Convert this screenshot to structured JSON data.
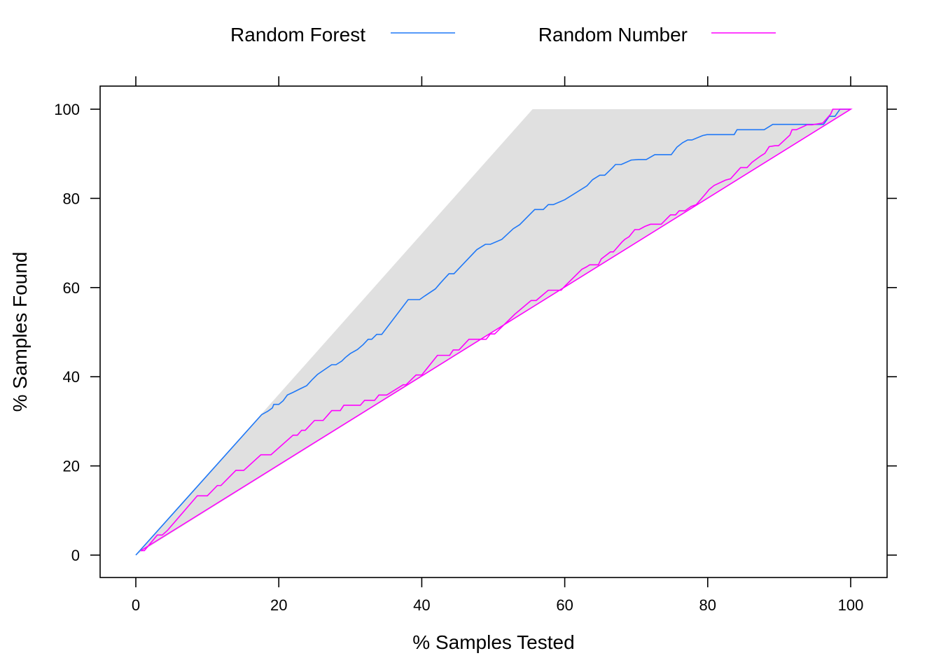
{
  "chart_data": {
    "type": "line",
    "xlabel": "% Samples Tested",
    "ylabel": "% Samples Found",
    "xlim": [
      -5,
      105
    ],
    "ylim": [
      -5,
      105
    ],
    "x_ticks": [
      "0",
      "20",
      "40",
      "60",
      "80",
      "100"
    ],
    "y_ticks": [
      "0",
      "20",
      "40",
      "60",
      "80",
      "100"
    ],
    "x_tick_values": [
      0,
      20,
      40,
      60,
      80,
      100
    ],
    "y_tick_values": [
      0,
      20,
      40,
      60,
      80,
      100
    ],
    "legend_position": "top",
    "grid": false,
    "band": {
      "color": "#e0e0e0",
      "upper": [
        [
          0,
          0
        ],
        [
          55.5,
          100
        ],
        [
          100,
          100
        ]
      ],
      "lower": [
        [
          0,
          0
        ],
        [
          100,
          100
        ]
      ]
    },
    "series": [
      {
        "name": "Random Forest",
        "color": "#1f78f7",
        "points": [
          [
            0,
            0
          ],
          [
            17.6,
            31.5
          ],
          [
            18.5,
            32.3
          ],
          [
            19.1,
            33.0
          ],
          [
            19.3,
            33.8
          ],
          [
            20.0,
            33.8
          ],
          [
            20.6,
            34.6
          ],
          [
            21.2,
            35.9
          ],
          [
            22.0,
            36.5
          ],
          [
            23.0,
            37.3
          ],
          [
            23.9,
            38.0
          ],
          [
            24.7,
            39.4
          ],
          [
            25.4,
            40.5
          ],
          [
            26.4,
            41.6
          ],
          [
            27.4,
            42.7
          ],
          [
            28.0,
            42.7
          ],
          [
            28.8,
            43.5
          ],
          [
            29.3,
            44.3
          ],
          [
            30.0,
            45.2
          ],
          [
            31.0,
            46.1
          ],
          [
            31.8,
            47.2
          ],
          [
            32.5,
            48.4
          ],
          [
            33.0,
            48.4
          ],
          [
            33.7,
            49.5
          ],
          [
            34.4,
            49.5
          ],
          [
            38.1,
            57.3
          ],
          [
            39.7,
            57.3
          ],
          [
            40.4,
            58.1
          ],
          [
            41.9,
            59.7
          ],
          [
            42.6,
            61.0
          ],
          [
            43.8,
            63.1
          ],
          [
            44.5,
            63.1
          ],
          [
            47.7,
            68.5
          ],
          [
            48.9,
            69.7
          ],
          [
            49.6,
            69.7
          ],
          [
            51.2,
            70.8
          ],
          [
            52.8,
            73.2
          ],
          [
            53.7,
            74.1
          ],
          [
            55.8,
            77.5
          ],
          [
            57.0,
            77.5
          ],
          [
            57.7,
            78.6
          ],
          [
            58.4,
            78.6
          ],
          [
            60.0,
            79.7
          ],
          [
            63.1,
            82.8
          ],
          [
            63.9,
            84.2
          ],
          [
            64.9,
            85.2
          ],
          [
            65.6,
            85.2
          ],
          [
            66.7,
            86.9
          ],
          [
            67.1,
            87.6
          ],
          [
            67.9,
            87.6
          ],
          [
            69.3,
            88.6
          ],
          [
            70.3,
            88.7
          ],
          [
            71.4,
            88.7
          ],
          [
            72.6,
            89.8
          ],
          [
            74.9,
            89.8
          ],
          [
            75.7,
            91.5
          ],
          [
            76.5,
            92.5
          ],
          [
            77.2,
            93.1
          ],
          [
            77.8,
            93.1
          ],
          [
            79.3,
            94.1
          ],
          [
            79.9,
            94.3
          ],
          [
            83.7,
            94.3
          ],
          [
            84.1,
            95.4
          ],
          [
            87.9,
            95.4
          ],
          [
            89.1,
            96.6
          ],
          [
            96.2,
            96.6
          ],
          [
            97.0,
            98.4
          ],
          [
            97.8,
            98.4
          ],
          [
            98.5,
            100
          ],
          [
            100,
            100
          ]
        ]
      },
      {
        "name": "Random Number",
        "color": "#ff00ff",
        "points": [
          [
            0.7,
            1.0
          ],
          [
            1.2,
            1.0
          ],
          [
            3.0,
            4.5
          ],
          [
            3.7,
            4.5
          ],
          [
            4.4,
            5.5
          ],
          [
            8.6,
            13.3
          ],
          [
            10.0,
            13.3
          ],
          [
            11.4,
            15.6
          ],
          [
            11.9,
            15.6
          ],
          [
            14.0,
            19.0
          ],
          [
            15.1,
            19.0
          ],
          [
            17.5,
            22.5
          ],
          [
            18.9,
            22.5
          ],
          [
            22.0,
            26.9
          ],
          [
            22.6,
            26.9
          ],
          [
            23.2,
            28.0
          ],
          [
            23.7,
            28.0
          ],
          [
            25.0,
            30.2
          ],
          [
            26.2,
            30.2
          ],
          [
            27.4,
            32.4
          ],
          [
            28.6,
            32.4
          ],
          [
            29.1,
            33.6
          ],
          [
            31.4,
            33.6
          ],
          [
            32.0,
            34.7
          ],
          [
            33.4,
            34.7
          ],
          [
            34.0,
            35.9
          ],
          [
            35.1,
            35.9
          ],
          [
            37.4,
            38.2
          ],
          [
            37.8,
            38.2
          ],
          [
            39.2,
            40.4
          ],
          [
            40.0,
            40.4
          ],
          [
            42.2,
            44.8
          ],
          [
            43.9,
            44.8
          ],
          [
            44.4,
            46.0
          ],
          [
            45.2,
            46.0
          ],
          [
            46.6,
            48.4
          ],
          [
            47.0,
            48.4
          ],
          [
            49.0,
            48.4
          ],
          [
            49.6,
            49.6
          ],
          [
            50.2,
            49.6
          ],
          [
            53.0,
            54.0
          ],
          [
            55.3,
            57.1
          ],
          [
            56.0,
            57.1
          ],
          [
            57.7,
            59.4
          ],
          [
            59.5,
            59.4
          ],
          [
            60.0,
            60.3
          ],
          [
            62.4,
            64.1
          ],
          [
            63.0,
            64.6
          ],
          [
            63.5,
            65.1
          ],
          [
            64.7,
            65.1
          ],
          [
            65.1,
            66.4
          ],
          [
            66.4,
            68.0
          ],
          [
            66.8,
            68.0
          ],
          [
            68.0,
            70.2
          ],
          [
            68.4,
            70.8
          ],
          [
            69.0,
            71.4
          ],
          [
            69.8,
            73.0
          ],
          [
            70.4,
            73.0
          ],
          [
            71.2,
            73.7
          ],
          [
            72.0,
            74.2
          ],
          [
            73.5,
            74.2
          ],
          [
            74.8,
            76.3
          ],
          [
            75.5,
            76.3
          ],
          [
            76.0,
            77.2
          ],
          [
            76.8,
            77.2
          ],
          [
            77.7,
            78.2
          ],
          [
            78.4,
            78.6
          ],
          [
            79.7,
            81.0
          ],
          [
            80.2,
            82.0
          ],
          [
            80.9,
            82.9
          ],
          [
            82.5,
            84.1
          ],
          [
            83.2,
            84.4
          ],
          [
            84.6,
            86.9
          ],
          [
            85.5,
            86.9
          ],
          [
            86.2,
            88.1
          ],
          [
            87.4,
            89.5
          ],
          [
            88.0,
            90.1
          ],
          [
            88.6,
            91.6
          ],
          [
            89.4,
            91.8
          ],
          [
            89.9,
            91.8
          ],
          [
            91.5,
            94.2
          ],
          [
            91.8,
            95.4
          ],
          [
            92.4,
            95.4
          ],
          [
            93.9,
            96.5
          ],
          [
            94.6,
            96.5
          ],
          [
            96.1,
            96.9
          ],
          [
            97.2,
            98.9
          ],
          [
            97.5,
            100
          ],
          [
            100,
            100
          ],
          [
            0.7,
            1.0
          ]
        ]
      }
    ]
  }
}
